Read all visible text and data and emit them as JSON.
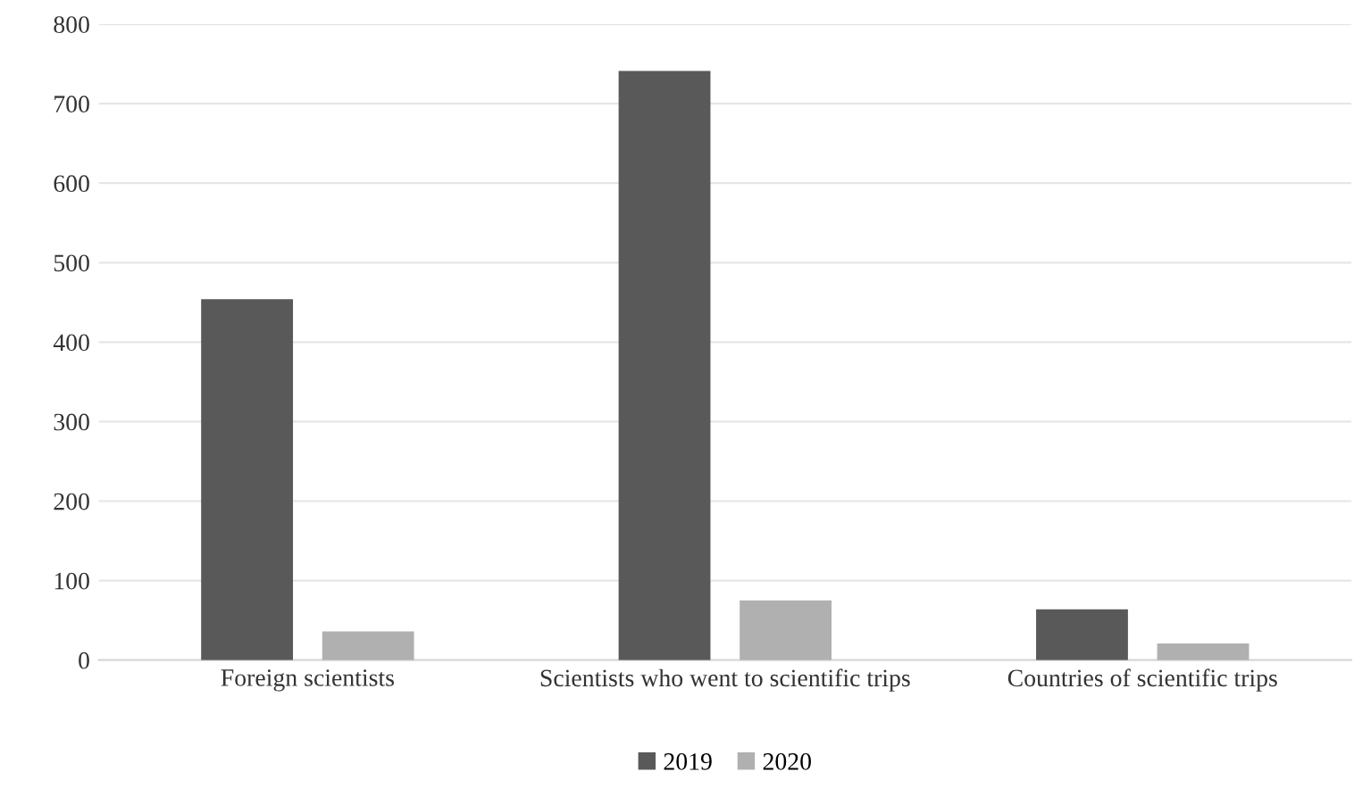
{
  "chart_data": {
    "type": "bar",
    "categories": [
      "Foreign scientists",
      "Scientists who went to scientific trips",
      "Countries of scientific trips"
    ],
    "series": [
      {
        "name": "2019",
        "color": "#595959",
        "values": [
          454,
          741,
          64
        ]
      },
      {
        "name": "2020",
        "color": "#b0b0b0",
        "values": [
          36,
          75,
          21
        ]
      }
    ],
    "ylim": [
      0,
      800
    ],
    "yticks": [
      0,
      100,
      200,
      300,
      400,
      500,
      600,
      700,
      800
    ],
    "grid": "y",
    "legend": "bottom"
  }
}
